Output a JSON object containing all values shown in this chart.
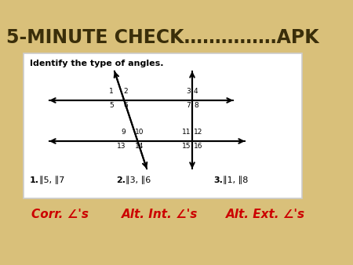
{
  "title": "5-MINUTE CHECK……………APK",
  "title_color": "#3a2e0a",
  "bg_color": "#d9c07a",
  "box_bg": "#ffffff",
  "box_text": "Identify the type of angles.",
  "answers": [
    {
      "num": "1.",
      "angles": "∥5, ∥7"
    },
    {
      "num": "2.",
      "angles": "∥3, ∥6"
    },
    {
      "num": "3.",
      "angles": "∥1, ∥8"
    }
  ],
  "bottom_answers": [
    {
      "text": "Corr. ∠'s",
      "color": "#cc0000"
    },
    {
      "text": "Alt. Int. ∠'s",
      "color": "#cc0000"
    },
    {
      "text": "Alt. Ext. ∠'s",
      "color": "#cc0000"
    }
  ]
}
